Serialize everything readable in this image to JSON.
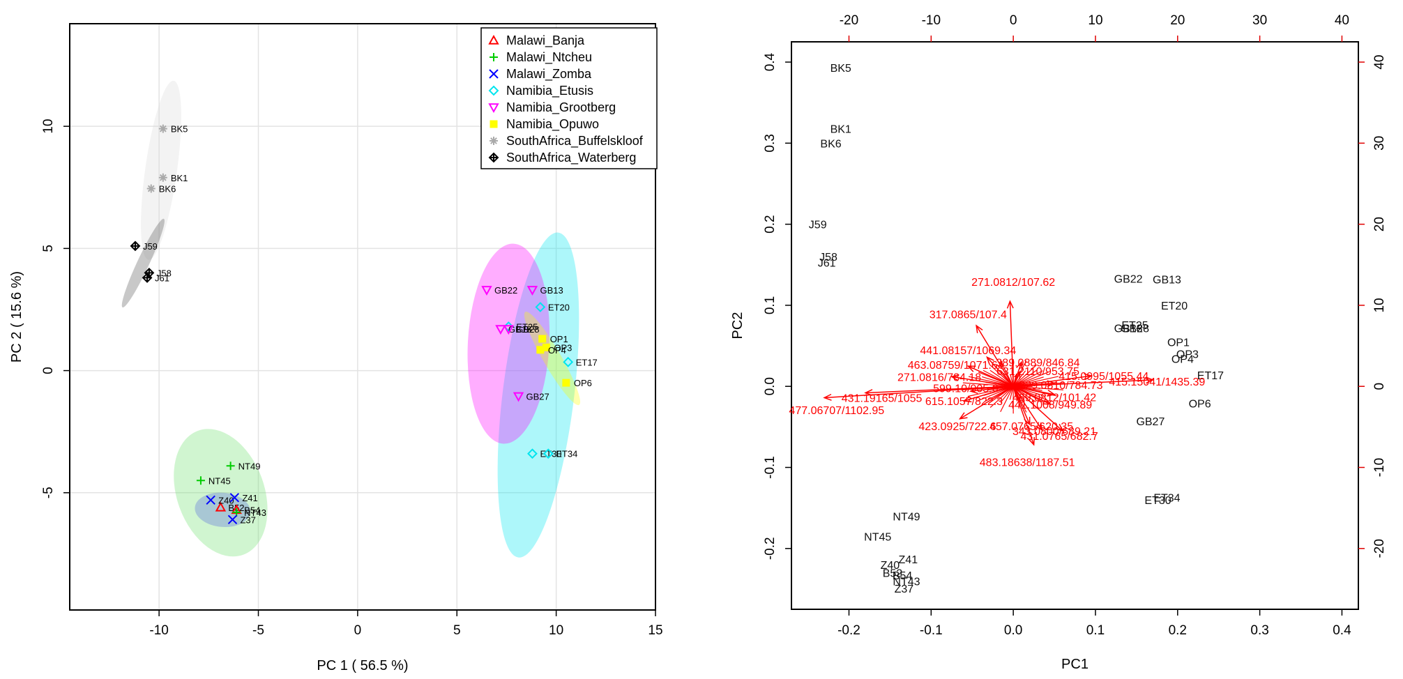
{
  "chart_data": [
    {
      "type": "scatter",
      "title": "",
      "xlabel": "PC 1 ( 56.5 %)",
      "ylabel": "PC 2 ( 15.6 %)",
      "xlim": [
        -14.5,
        15
      ],
      "ylim": [
        -9.8,
        14.2
      ],
      "xticks": [
        -10,
        -5,
        0,
        5,
        10,
        15
      ],
      "yticks": [
        -5,
        0,
        5,
        10
      ],
      "grid": true,
      "legend_position": "top-right",
      "colors": {
        "Malawi_Banja": "#ff0000",
        "Malawi_Ntcheu": "#00cc00",
        "Malawi_Zomba": "#0000ff",
        "Namibia_Etusis": "#00e5ee",
        "Namibia_Grootberg": "#ff00ff",
        "Namibia_Opuwo": "#ffff00",
        "SouthAfrica_Buffelskloof": "#aaaaaa",
        "SouthAfrica_Waterberg": "#000000"
      },
      "series": [
        {
          "name": "Malawi_Banja",
          "marker": "triangle-up",
          "points": [
            {
              "label": "B52",
              "x": -6.9,
              "y": -5.6
            },
            {
              "label": "B54",
              "x": -6.1,
              "y": -5.7
            }
          ]
        },
        {
          "name": "Malawi_Ntcheu",
          "marker": "plus",
          "points": [
            {
              "label": "NT49",
              "x": -6.4,
              "y": -3.9
            },
            {
              "label": "NT45",
              "x": -7.9,
              "y": -4.5
            },
            {
              "label": "NT43",
              "x": -6.1,
              "y": -5.8
            }
          ]
        },
        {
          "name": "Malawi_Zomba",
          "marker": "cross",
          "points": [
            {
              "label": "Z40",
              "x": -7.4,
              "y": -5.3
            },
            {
              "label": "Z41",
              "x": -6.2,
              "y": -5.2
            },
            {
              "label": "Z37",
              "x": -6.3,
              "y": -6.1
            }
          ]
        },
        {
          "name": "Namibia_Etusis",
          "marker": "diamond",
          "points": [
            {
              "label": "ET20",
              "x": 9.2,
              "y": 2.6
            },
            {
              "label": "ET25",
              "x": 7.6,
              "y": 1.8
            },
            {
              "label": "ET17",
              "x": 10.6,
              "y": 0.35
            },
            {
              "label": "ET30",
              "x": 8.8,
              "y": -3.4
            },
            {
              "label": "ET34",
              "x": 9.6,
              "y": -3.4
            }
          ]
        },
        {
          "name": "Namibia_Grootberg",
          "marker": "triangle-down",
          "points": [
            {
              "label": "GB22",
              "x": 6.5,
              "y": 3.3
            },
            {
              "label": "GB13",
              "x": 8.8,
              "y": 3.3
            },
            {
              "label": "GB18",
              "x": 7.2,
              "y": 1.7
            },
            {
              "label": "GB28",
              "x": 7.6,
              "y": 1.7
            },
            {
              "label": "GB27",
              "x": 8.1,
              "y": -1.05
            }
          ]
        },
        {
          "name": "Namibia_Opuwo",
          "marker": "square",
          "points": [
            {
              "label": "OP1",
              "x": 9.3,
              "y": 1.3
            },
            {
              "label": "OP3",
              "x": 9.5,
              "y": 0.95
            },
            {
              "label": "OP4",
              "x": 9.2,
              "y": 0.85
            },
            {
              "label": "OP6",
              "x": 10.5,
              "y": -0.5
            }
          ]
        },
        {
          "name": "SouthAfrica_Buffelskloof",
          "marker": "asterisk",
          "points": [
            {
              "label": "BK5",
              "x": -9.8,
              "y": 9.9
            },
            {
              "label": "BK1",
              "x": -9.8,
              "y": 7.9
            },
            {
              "label": "BK6",
              "x": -10.4,
              "y": 7.45
            }
          ]
        },
        {
          "name": "SouthAfrica_Waterberg",
          "marker": "diamond-plus",
          "points": [
            {
              "label": "J59",
              "x": -11.2,
              "y": 5.1
            },
            {
              "label": "J58",
              "x": -10.5,
              "y": 4.0
            },
            {
              "label": "J61",
              "x": -10.6,
              "y": 3.8
            }
          ]
        }
      ],
      "ellipses": [
        {
          "group": "SouthAfrica_Buffelskloof",
          "cx": -9.9,
          "cy": 8.2,
          "rx": 0.8,
          "ry": 3.7,
          "angle": 8,
          "color": "#d9d9d9"
        },
        {
          "group": "SouthAfrica_Waterberg",
          "cx": -10.8,
          "cy": 4.4,
          "rx": 0.3,
          "ry": 2.0,
          "angle": 25,
          "color": "#555555"
        },
        {
          "group": "Namibia_Etusis",
          "cx": 9.1,
          "cy": -1.0,
          "rx": 1.8,
          "ry": 6.7,
          "angle": 7,
          "color": "#00e5ee"
        },
        {
          "group": "Namibia_Grootberg",
          "cx": 7.6,
          "cy": 1.1,
          "rx": 2.05,
          "ry": 4.1,
          "angle": 3,
          "color": "#ff00ff"
        },
        {
          "group": "Namibia_Opuwo",
          "cx": 9.8,
          "cy": 0.5,
          "rx": 0.45,
          "ry": 2.2,
          "angle": -30,
          "color": "#ffff00"
        },
        {
          "group": "Malawi_Ntcheu",
          "cx": -6.9,
          "cy": -5.0,
          "rx": 2.2,
          "ry": 2.7,
          "angle": -20,
          "color": "#6ee16e"
        },
        {
          "group": "Malawi_Zomba",
          "cx": -6.8,
          "cy": -5.7,
          "rx": 1.4,
          "ry": 0.7,
          "angle": 5,
          "color": "#5566dd"
        }
      ]
    },
    {
      "type": "biplot",
      "title": "",
      "xlabel": "PC1",
      "ylabel": "PC2",
      "xlim": [
        -0.27,
        0.42
      ],
      "ylim": [
        -0.275,
        0.425
      ],
      "xticks": [
        -0.2,
        -0.1,
        0.0,
        0.1,
        0.2,
        0.3,
        0.4
      ],
      "yticks": [
        -0.2,
        -0.1,
        0.0,
        0.1,
        0.2,
        0.3,
        0.4
      ],
      "secondary_x_ticks": [
        -20,
        -10,
        0,
        10,
        20,
        30,
        40
      ],
      "secondary_y_ticks": [
        -20,
        -10,
        0,
        10,
        20,
        30,
        40
      ],
      "arrow_color": "#ff0000",
      "samples": [
        {
          "label": "BK5",
          "x": -0.21,
          "y": 0.393
        },
        {
          "label": "BK1",
          "x": -0.21,
          "y": 0.318
        },
        {
          "label": "BK6",
          "x": -0.222,
          "y": 0.3
        },
        {
          "label": "J59",
          "x": -0.238,
          "y": 0.2
        },
        {
          "label": "J58",
          "x": -0.225,
          "y": 0.16
        },
        {
          "label": "J61",
          "x": -0.227,
          "y": 0.153
        },
        {
          "label": "GB22",
          "x": 0.14,
          "y": 0.133
        },
        {
          "label": "GB13",
          "x": 0.187,
          "y": 0.132
        },
        {
          "label": "ET20",
          "x": 0.196,
          "y": 0.1
        },
        {
          "label": "ET25",
          "x": 0.148,
          "y": 0.076
        },
        {
          "label": "GB18",
          "x": 0.14,
          "y": 0.072
        },
        {
          "label": "GB28",
          "x": 0.148,
          "y": 0.072
        },
        {
          "label": "OP1",
          "x": 0.201,
          "y": 0.055
        },
        {
          "label": "OP3",
          "x": 0.212,
          "y": 0.04
        },
        {
          "label": "OP4",
          "x": 0.206,
          "y": 0.034
        },
        {
          "label": "ET17",
          "x": 0.24,
          "y": 0.014
        },
        {
          "label": "OP6",
          "x": 0.227,
          "y": -0.021
        },
        {
          "label": "GB27",
          "x": 0.167,
          "y": -0.043
        },
        {
          "label": "ET30",
          "x": 0.176,
          "y": -0.14
        },
        {
          "label": "ET34",
          "x": 0.187,
          "y": -0.137
        },
        {
          "label": "NT49",
          "x": -0.13,
          "y": -0.16
        },
        {
          "label": "NT45",
          "x": -0.165,
          "y": -0.185
        },
        {
          "label": "Z41",
          "x": -0.128,
          "y": -0.213
        },
        {
          "label": "Z40",
          "x": -0.15,
          "y": -0.22
        },
        {
          "label": "B52",
          "x": -0.147,
          "y": -0.23
        },
        {
          "label": "B54",
          "x": -0.135,
          "y": -0.233
        },
        {
          "label": "NT43",
          "x": -0.13,
          "y": -0.24
        },
        {
          "label": "Z37",
          "x": -0.133,
          "y": -0.249
        }
      ],
      "loadings": [
        {
          "label": "271.0812/107.62",
          "x": -0.004,
          "y": 0.105,
          "lx": 0.0,
          "ly": 0.129
        },
        {
          "label": "317.0865/107.4",
          "x": -0.045,
          "y": 0.075,
          "lx": -0.055,
          "ly": 0.089
        },
        {
          "label": "441.08157/1069.34",
          "x": -0.032,
          "y": 0.036,
          "lx": -0.055,
          "ly": 0.045
        },
        {
          "label": "477.06707/1102.95",
          "x": -0.23,
          "y": -0.014,
          "lx": -0.215,
          "ly": -0.029
        },
        {
          "label": "431.19165/1055",
          "x": -0.18,
          "y": -0.008,
          "lx": -0.16,
          "ly": -0.014
        },
        {
          "label": "423.0925/722.6",
          "x": -0.065,
          "y": -0.04,
          "lx": -0.068,
          "ly": -0.049
        },
        {
          "label": "457.0765/620.35",
          "x": 0.02,
          "y": -0.047,
          "lx": 0.022,
          "ly": -0.049
        },
        {
          "label": "343.0800/689.21",
          "x": 0.035,
          "y": -0.054,
          "lx": 0.05,
          "ly": -0.055
        },
        {
          "label": "483.18638/1187.51",
          "x": 0.025,
          "y": -0.072,
          "lx": 0.017,
          "ly": -0.093
        },
        {
          "label": "431.0765/682.7",
          "x": 0.06,
          "y": -0.055,
          "lx": 0.056,
          "ly": -0.061
        },
        {
          "label": "415.0995/1055.44",
          "x": 0.095,
          "y": 0.013,
          "lx": 0.11,
          "ly": 0.013
        },
        {
          "label": "415.15041/1435.39",
          "x": 0.17,
          "y": 0.008,
          "lx": 0.175,
          "ly": 0.006
        },
        {
          "label": "463.08759/1071.64",
          "x": -0.055,
          "y": 0.025,
          "lx": -0.07,
          "ly": 0.027
        },
        {
          "label": "271.0816/784.18",
          "x": -0.075,
          "y": 0.012,
          "lx": -0.09,
          "ly": 0.012
        },
        {
          "label": "599.10/905.6",
          "x": -0.052,
          "y": -0.006,
          "lx": -0.058,
          "ly": -0.002
        },
        {
          "label": "615.1057/822.3",
          "x": -0.06,
          "y": -0.018,
          "lx": -0.06,
          "ly": -0.018
        },
        {
          "label": "469.0812/101.42",
          "x": 0.05,
          "y": -0.01,
          "lx": 0.05,
          "ly": -0.013
        },
        {
          "label": "441.1008/949.89",
          "x": 0.045,
          "y": -0.022,
          "lx": 0.045,
          "ly": -0.022
        },
        {
          "label": "329.0810/784.73",
          "x": 0.05,
          "y": 0.004,
          "lx": 0.058,
          "ly": 0.002
        },
        {
          "label": "389.0889/846.84",
          "x": 0.01,
          "y": 0.03,
          "lx": 0.03,
          "ly": 0.03
        },
        {
          "label": "631.2110/953.75",
          "x": 0.008,
          "y": 0.018,
          "lx": 0.03,
          "ly": 0.019
        }
      ]
    }
  ]
}
